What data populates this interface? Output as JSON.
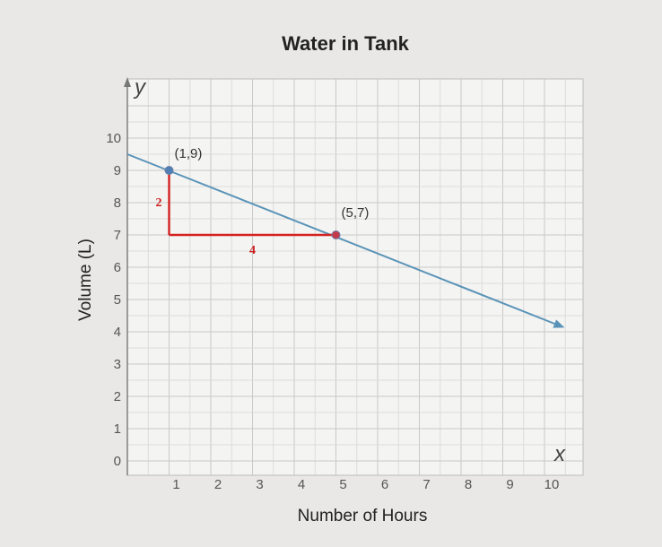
{
  "chart_data": {
    "type": "line",
    "title": "Water in Tank",
    "xlabel": "Number of Hours",
    "ylabel": "Volume (L)",
    "x_axis_letter": "x",
    "y_axis_letter": "y",
    "xlim": [
      0,
      10.5
    ],
    "ylim": [
      0,
      10.5
    ],
    "x_ticks": [
      1,
      2,
      3,
      4,
      5,
      6,
      7,
      8,
      9,
      10
    ],
    "y_ticks": [
      0,
      1,
      2,
      3,
      4,
      5,
      6,
      7,
      8,
      9,
      10
    ],
    "grid": true,
    "line": {
      "x_start": 0,
      "y_start": 9.5,
      "x_end": 10.5,
      "y_end": 4.25,
      "slope": -0.5,
      "color": "#5a93b8"
    },
    "points": [
      {
        "x": 1,
        "y": 9,
        "label": "(1,9)"
      },
      {
        "x": 5,
        "y": 7,
        "label": "(5,7)"
      }
    ],
    "slope_triangle": {
      "color": "#d42222",
      "rise_label": "2",
      "run_label": "4"
    }
  }
}
